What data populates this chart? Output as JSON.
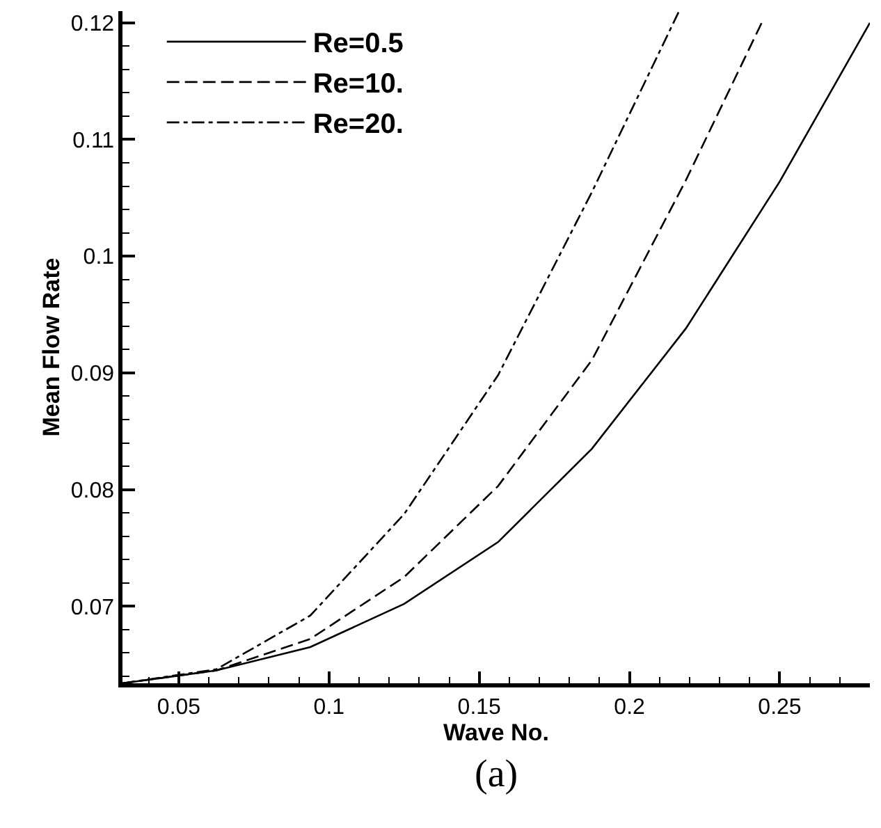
{
  "chart_data": {
    "type": "line",
    "xlabel": "Wave No.",
    "ylabel": "Mean Flow Rate",
    "annotations": [
      "(a)"
    ],
    "xlim": [
      0.03125,
      0.28
    ],
    "ylim": [
      0.0634,
      0.121
    ],
    "xticks": [
      {
        "value": 0.04,
        "label": null
      },
      0.05,
      {
        "value": 0.06,
        "label": null
      },
      {
        "value": 0.07,
        "label": null
      },
      {
        "value": 0.08,
        "label": null
      },
      {
        "value": 0.09,
        "label": null
      },
      0.1,
      {
        "value": 0.11,
        "label": null
      },
      {
        "value": 0.12,
        "label": null
      },
      {
        "value": 0.13,
        "label": null
      },
      {
        "value": 0.14,
        "label": null
      },
      0.15,
      {
        "value": 0.16,
        "label": null
      },
      {
        "value": 0.17,
        "label": null
      },
      {
        "value": 0.18,
        "label": null
      },
      {
        "value": 0.19,
        "label": null
      },
      0.2,
      {
        "value": 0.21,
        "label": null
      },
      {
        "value": 0.22,
        "label": null
      },
      {
        "value": 0.23,
        "label": null
      },
      {
        "value": 0.24,
        "label": null
      },
      0.25,
      {
        "value": 0.26,
        "label": null
      },
      {
        "value": 0.27,
        "label": null
      }
    ],
    "yticks": [
      {
        "value": 0.064,
        "label": null
      },
      {
        "value": 0.066,
        "label": null
      },
      {
        "value": 0.068,
        "label": null
      },
      0.07,
      {
        "value": 0.072,
        "label": null
      },
      {
        "value": 0.074,
        "label": null
      },
      {
        "value": 0.076,
        "label": null
      },
      {
        "value": 0.078,
        "label": null
      },
      0.08,
      {
        "value": 0.082,
        "label": null
      },
      {
        "value": 0.084,
        "label": null
      },
      {
        "value": 0.086,
        "label": null
      },
      {
        "value": 0.088,
        "label": null
      },
      0.09,
      {
        "value": 0.092,
        "label": null
      },
      {
        "value": 0.094,
        "label": null
      },
      {
        "value": 0.096,
        "label": null
      },
      {
        "value": 0.098,
        "label": null
      },
      0.1,
      {
        "value": 0.102,
        "label": null
      },
      {
        "value": 0.104,
        "label": null
      },
      {
        "value": 0.106,
        "label": null
      },
      {
        "value": 0.108,
        "label": null
      },
      0.11,
      {
        "value": 0.112,
        "label": null
      },
      {
        "value": 0.114,
        "label": null
      },
      {
        "value": 0.116,
        "label": null
      },
      {
        "value": 0.118,
        "label": null
      },
      0.12
    ],
    "grid": false,
    "legend": "top left",
    "marker": "none",
    "series": [
      {
        "name": "Re=0.5",
        "color": "#000000",
        "line_style": "solid",
        "x": [
          0.03125,
          0.0625,
          0.09375,
          0.125,
          0.15625,
          0.1875,
          0.21875,
          0.25,
          0.28
        ],
        "values": [
          0.0634,
          0.0645,
          0.0665,
          0.0702,
          0.0755,
          0.0835,
          0.0938,
          0.1064,
          0.12
        ]
      },
      {
        "name": "Re=10.",
        "color": "#000000",
        "line_style": "dashed",
        "x": [
          0.03125,
          0.0625,
          0.09375,
          0.125,
          0.15625,
          0.1875,
          0.21875,
          0.244
        ],
        "values": [
          0.0634,
          0.0645,
          0.0672,
          0.0725,
          0.0803,
          0.0911,
          0.1065,
          0.12
        ]
      },
      {
        "name": "Re=20.",
        "color": "#000000",
        "line_style": "dashdot",
        "x": [
          0.03125,
          0.0625,
          0.09375,
          0.125,
          0.15625,
          0.1875,
          0.2165
        ],
        "values": [
          0.0634,
          0.0646,
          0.0692,
          0.0779,
          0.0898,
          0.1055,
          0.121
        ]
      }
    ]
  }
}
